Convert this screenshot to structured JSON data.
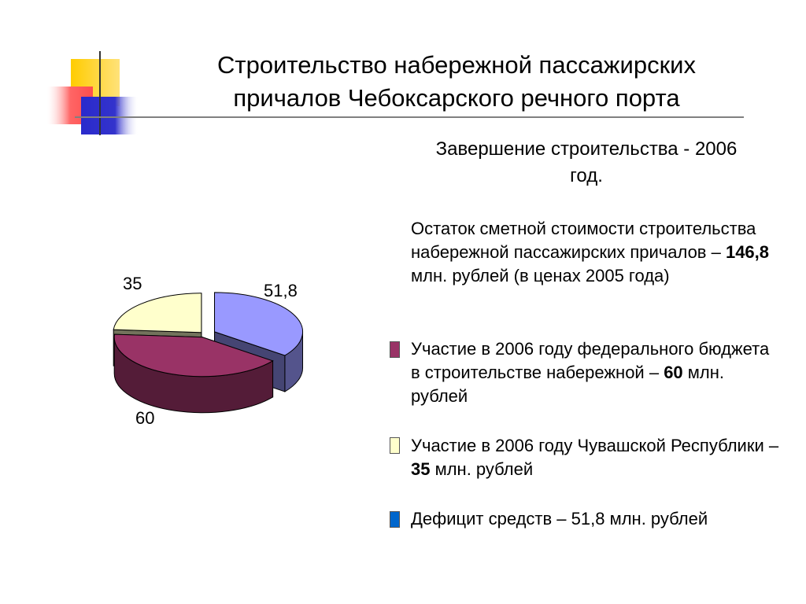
{
  "slide": {
    "title": "Строительство набережной пассажирских причалов Чебоксарского речного порта",
    "subtitle": "Завершение строительства - 2006 год.",
    "remainder": {
      "prefix": "Остаток сметной стоимости строительства набережной пассажирских причалов – ",
      "value": "146,8",
      "suffix": " млн. рублей (в ценах 2005 года)"
    },
    "legend": [
      {
        "prefix": "Участие в 2006 году федерального бюджета в строительстве набережной – ",
        "value": "60",
        "suffix": " млн. рублей",
        "color": "#993366"
      },
      {
        "prefix": "Участие в 2006 году Чувашской Республики – ",
        "value": "35",
        "suffix": " млн. рублей",
        "color": "#FFFFCC"
      },
      {
        "prefix": "Дефицит средств – 51,8 млн. рублей",
        "value": "",
        "suffix": "",
        "color": "#0066CC"
      }
    ]
  },
  "chart_data": {
    "type": "pie",
    "title": "",
    "slices": [
      {
        "label": "51,8",
        "value": 51.8,
        "color": "#9999FF"
      },
      {
        "label": "60",
        "value": 60,
        "color": "#993366"
      },
      {
        "label": "35",
        "value": 35,
        "color": "#FFFFCC"
      }
    ],
    "style": "3d-exploded"
  },
  "decor": {
    "yellow": "#FFCC00",
    "red": "#FF6666",
    "blue": "#3333CC",
    "line": "#808080"
  }
}
